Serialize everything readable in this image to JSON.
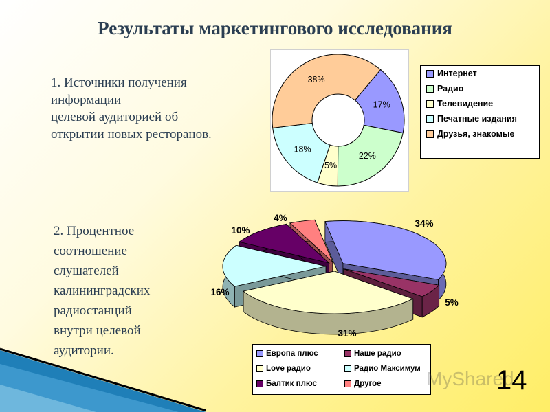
{
  "title": "Результаты маркетингового исследования",
  "section1": {
    "lines": [
      "1. Источники получения",
      "информации",
      "целевой аудиторией об",
      "открытии новых ресторанов."
    ]
  },
  "section2": {
    "lines": [
      "2. Процентное",
      "соотношение",
      "слушателей",
      "калининградских",
      "радиостанций",
      "внутри целевой",
      "аудитории."
    ]
  },
  "page_number": "14",
  "watermark": "MyShared",
  "chart_data": [
    {
      "type": "pie",
      "variant": "doughnut",
      "categories": [
        "Интернет",
        "Радио",
        "Телевидение",
        "Печатные издания",
        "Друзья, знакомые"
      ],
      "values": [
        17,
        22,
        5,
        18,
        38
      ],
      "labels": [
        "17%",
        "22%",
        "5%",
        "18%",
        "38%"
      ],
      "colors": [
        "#9999ff",
        "#ccffcc",
        "#ffffcc",
        "#ccffff",
        "#ffcc99"
      ],
      "legend": "right"
    },
    {
      "type": "pie",
      "variant": "3d-exploded",
      "categories": [
        "Европа плюс",
        "Наше радио",
        "Love радио",
        "Радио Максимум",
        "Балтик плюс",
        "Другое"
      ],
      "values": [
        34,
        5,
        31,
        16,
        10,
        4
      ],
      "labels": [
        "34%",
        "5%",
        "31%",
        "16%",
        "10%",
        "4%"
      ],
      "colors": [
        "#9999ff",
        "#993366",
        "#ffffcc",
        "#ccffff",
        "#660066",
        "#ff8080"
      ],
      "legend": "bottom"
    }
  ]
}
